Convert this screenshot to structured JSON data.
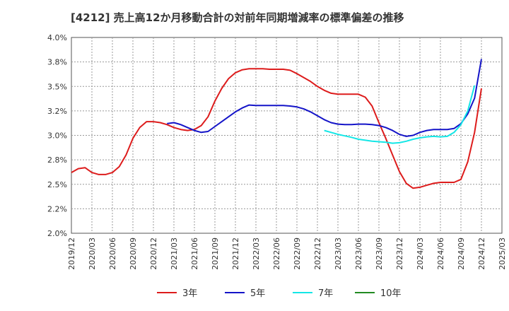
{
  "chart_data": {
    "type": "line",
    "title": "[4212]  売上高12か月移動合計の対前年同期増減率の標準偏差の推移",
    "xlabel": "",
    "ylabel": "",
    "ylim": [
      2.0,
      4.0
    ],
    "yticks": [
      2.0,
      2.25,
      2.5,
      2.75,
      3.0,
      3.25,
      3.5,
      3.75,
      4.0
    ],
    "ytick_labels": [
      "2.0%",
      "2.2%",
      "2.5%",
      "2.8%",
      "3.0%",
      "3.2%",
      "3.5%",
      "3.8%",
      "4.0%"
    ],
    "xticks": [
      "2019/12",
      "2020/03",
      "2020/06",
      "2020/09",
      "2020/12",
      "2021/03",
      "2021/06",
      "2021/09",
      "2021/12",
      "2022/03",
      "2022/06",
      "2022/09",
      "2022/12",
      "2023/03",
      "2023/06",
      "2023/09",
      "2023/12",
      "2024/03",
      "2024/06",
      "2024/09",
      "2024/12",
      "2025/03"
    ],
    "grid": true,
    "legend_position": "bottom",
    "series": [
      {
        "name": "3年",
        "color": "#dd1c1c",
        "start": "2019/12",
        "values": [
          2.62,
          2.66,
          2.67,
          2.62,
          2.6,
          2.6,
          2.62,
          2.68,
          2.8,
          2.97,
          3.08,
          3.14,
          3.14,
          3.13,
          3.11,
          3.08,
          3.06,
          3.05,
          3.06,
          3.1,
          3.19,
          3.35,
          3.48,
          3.58,
          3.64,
          3.67,
          3.68,
          3.68,
          3.68,
          3.675,
          3.675,
          3.675,
          3.665,
          3.63,
          3.59,
          3.55,
          3.5,
          3.46,
          3.43,
          3.42,
          3.42,
          3.42,
          3.42,
          3.39,
          3.3,
          3.13,
          2.97,
          2.8,
          2.63,
          2.51,
          2.46,
          2.47,
          2.49,
          2.51,
          2.52,
          2.52,
          2.52,
          2.55,
          2.73,
          3.03,
          3.48
        ]
      },
      {
        "name": "5年",
        "color": "#1414c8",
        "start": "2021/02",
        "values": [
          3.12,
          3.13,
          3.11,
          3.08,
          3.05,
          3.03,
          3.04,
          3.09,
          3.14,
          3.19,
          3.24,
          3.28,
          3.31,
          3.305,
          3.305,
          3.305,
          3.305,
          3.305,
          3.3,
          3.29,
          3.27,
          3.24,
          3.2,
          3.16,
          3.13,
          3.115,
          3.11,
          3.11,
          3.115,
          3.115,
          3.11,
          3.1,
          3.08,
          3.05,
          3.01,
          2.99,
          3.0,
          3.03,
          3.05,
          3.06,
          3.06,
          3.06,
          3.07,
          3.12,
          3.22,
          3.38,
          3.78
        ]
      },
      {
        "name": "7年",
        "color": "#14e6e6",
        "start": "2023/01",
        "values": [
          3.05,
          3.03,
          3.01,
          2.995,
          2.98,
          2.96,
          2.95,
          2.94,
          2.935,
          2.93,
          2.92,
          2.925,
          2.94,
          2.96,
          2.975,
          2.985,
          2.99,
          2.985,
          2.99,
          3.03,
          3.11,
          3.25,
          3.51
        ]
      },
      {
        "name": "10年",
        "color": "#228b22",
        "start": "2024/12",
        "values": []
      }
    ]
  }
}
